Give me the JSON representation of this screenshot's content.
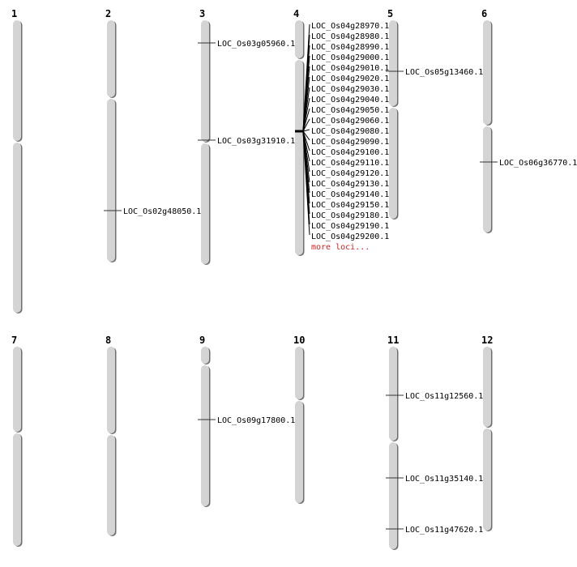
{
  "chromosomes": [
    {
      "label": "1",
      "markers": []
    },
    {
      "label": "2",
      "markers": [
        "LOC_Os02g48050.1"
      ]
    },
    {
      "label": "3",
      "markers": [
        "LOC_Os03g05960.1",
        "LOC_Os03g31910.1"
      ]
    },
    {
      "label": "4",
      "markers": [
        "LOC_Os04g28970.1",
        "LOC_Os04g28980.1",
        "LOC_Os04g28990.1",
        "LOC_Os04g29000.1",
        "LOC_Os04g29010.1",
        "LOC_Os04g29020.1",
        "LOC_Os04g29030.1",
        "LOC_Os04g29040.1",
        "LOC_Os04g29050.1",
        "LOC_Os04g29060.1",
        "LOC_Os04g29080.1",
        "LOC_Os04g29090.1",
        "LOC_Os04g29100.1",
        "LOC_Os04g29110.1",
        "LOC_Os04g29120.1",
        "LOC_Os04g29130.1",
        "LOC_Os04g29140.1",
        "LOC_Os04g29150.1",
        "LOC_Os04g29180.1",
        "LOC_Os04g29190.1",
        "LOC_Os04g29200.1"
      ],
      "more_label": "more loci..."
    },
    {
      "label": "5",
      "markers": [
        "LOC_Os05g13460.1"
      ]
    },
    {
      "label": "6",
      "markers": [
        "LOC_Os06g36770.1"
      ]
    },
    {
      "label": "7",
      "markers": []
    },
    {
      "label": "8",
      "markers": []
    },
    {
      "label": "9",
      "markers": [
        "LOC_Os09g17800.1"
      ]
    },
    {
      "label": "10",
      "markers": []
    },
    {
      "label": "11",
      "markers": [
        "LOC_Os11g12560.1",
        "LOC_Os11g35140.1",
        "LOC_Os11g47620.1"
      ]
    },
    {
      "label": "12",
      "markers": []
    }
  ],
  "colors": {
    "chromosome": "#d4d4d4",
    "shadow": "#6e6e6e",
    "more_link": "#d02020"
  }
}
